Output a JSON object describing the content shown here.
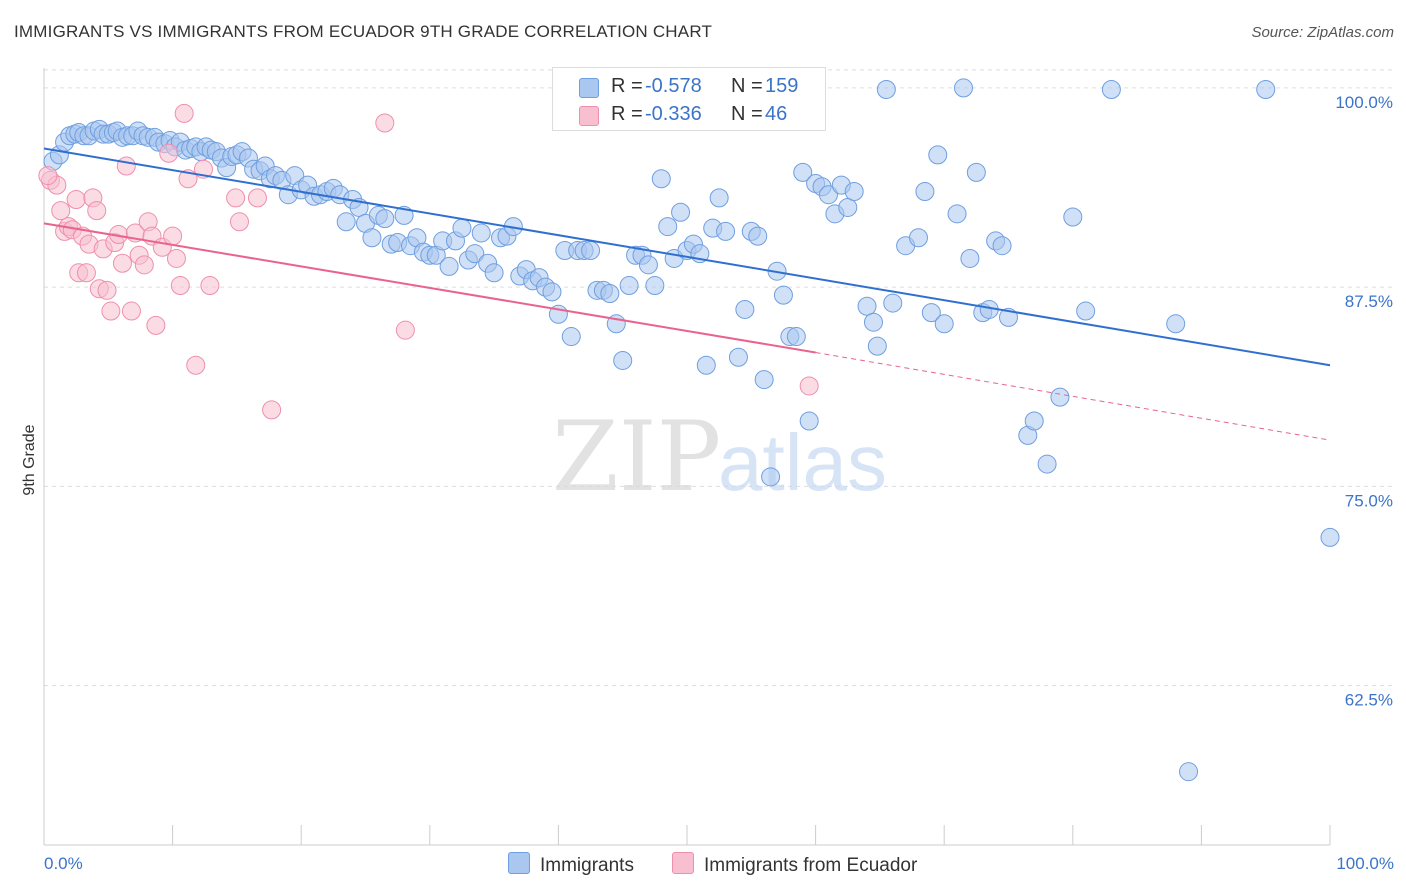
{
  "header": {
    "title": "IMMIGRANTS VS IMMIGRANTS FROM ECUADOR 9TH GRADE CORRELATION CHART",
    "source": "Source: ZipAtlas.com"
  },
  "watermark": {
    "zip": "ZIP",
    "atlas": "atlas"
  },
  "legend": {
    "series": [
      {
        "name": "Immigrants",
        "r_label": "R =",
        "r_value": "-0.578",
        "n_label": "N =",
        "n_value": "159",
        "color": "#a9c7ef",
        "stroke": "#6f9fe0"
      },
      {
        "name": "Immigrants from Ecuador",
        "r_label": "R =",
        "r_value": "-0.336",
        "n_label": "N =",
        "n_value": "46",
        "color": "#f7bfd0",
        "stroke": "#ee8fae"
      }
    ]
  },
  "chart_data": {
    "type": "scatter",
    "title": "IMMIGRANTS VS IMMIGRANTS FROM ECUADOR 9TH GRADE CORRELATION CHART",
    "xlabel": "",
    "ylabel": "9th Grade",
    "xlim": [
      0,
      100
    ],
    "ylim": [
      52.5,
      101.5
    ],
    "x_tick_labels": [
      "0.0%",
      "100.0%"
    ],
    "y_ticks": [
      62.5,
      75.0,
      87.5,
      100.0
    ],
    "y_tick_labels": [
      "62.5%",
      "75.0%",
      "87.5%",
      "100.0%"
    ],
    "grid": true,
    "legend_position": "top-center",
    "series": [
      {
        "name": "Immigrants",
        "color": "#6f9fe0",
        "trend": {
          "x": [
            0,
            100
          ],
          "y": [
            96.2,
            82.6
          ],
          "color": "#2f6fd0"
        },
        "points": [
          [
            0.7,
            95.4
          ],
          [
            1.2,
            95.8
          ],
          [
            1.6,
            96.6
          ],
          [
            2.0,
            97.0
          ],
          [
            2.4,
            97.1
          ],
          [
            2.7,
            97.2
          ],
          [
            3.1,
            97.0
          ],
          [
            3.5,
            97.0
          ],
          [
            3.9,
            97.3
          ],
          [
            4.3,
            97.4
          ],
          [
            4.6,
            97.1
          ],
          [
            5.0,
            97.1
          ],
          [
            5.4,
            97.2
          ],
          [
            5.7,
            97.3
          ],
          [
            6.1,
            96.9
          ],
          [
            6.5,
            97.0
          ],
          [
            6.9,
            97.0
          ],
          [
            7.3,
            97.3
          ],
          [
            7.7,
            97.0
          ],
          [
            8.1,
            96.9
          ],
          [
            8.6,
            96.9
          ],
          [
            8.9,
            96.6
          ],
          [
            9.4,
            96.5
          ],
          [
            9.8,
            96.7
          ],
          [
            10.2,
            96.3
          ],
          [
            10.6,
            96.6
          ],
          [
            11.0,
            96.1
          ],
          [
            11.4,
            96.2
          ],
          [
            11.8,
            96.3
          ],
          [
            12.2,
            96.0
          ],
          [
            12.6,
            96.3
          ],
          [
            13.0,
            96.1
          ],
          [
            13.4,
            96.0
          ],
          [
            13.8,
            95.6
          ],
          [
            14.2,
            95.0
          ],
          [
            14.6,
            95.7
          ],
          [
            15.0,
            95.8
          ],
          [
            15.4,
            96.0
          ],
          [
            15.9,
            95.6
          ],
          [
            16.3,
            94.9
          ],
          [
            16.8,
            94.8
          ],
          [
            17.2,
            95.1
          ],
          [
            17.6,
            94.3
          ],
          [
            18.0,
            94.5
          ],
          [
            18.5,
            94.2
          ],
          [
            19.0,
            93.3
          ],
          [
            19.5,
            94.5
          ],
          [
            20.0,
            93.6
          ],
          [
            20.5,
            93.9
          ],
          [
            21.0,
            93.2
          ],
          [
            21.5,
            93.3
          ],
          [
            22.0,
            93.5
          ],
          [
            22.5,
            93.7
          ],
          [
            23.0,
            93.3
          ],
          [
            23.5,
            91.6
          ],
          [
            24.0,
            93.0
          ],
          [
            24.5,
            92.5
          ],
          [
            25.0,
            91.5
          ],
          [
            25.5,
            90.6
          ],
          [
            26.0,
            92.0
          ],
          [
            26.5,
            91.8
          ],
          [
            27.0,
            90.2
          ],
          [
            27.5,
            90.3
          ],
          [
            28.0,
            92.0
          ],
          [
            28.5,
            90.1
          ],
          [
            29.0,
            90.6
          ],
          [
            29.5,
            89.7
          ],
          [
            30.0,
            89.5
          ],
          [
            30.5,
            89.5
          ],
          [
            31.0,
            90.4
          ],
          [
            31.5,
            88.8
          ],
          [
            32.0,
            90.4
          ],
          [
            32.5,
            91.2
          ],
          [
            33.0,
            89.2
          ],
          [
            33.5,
            89.6
          ],
          [
            34.0,
            90.9
          ],
          [
            34.5,
            89.0
          ],
          [
            35.0,
            88.4
          ],
          [
            35.5,
            90.6
          ],
          [
            36.0,
            90.7
          ],
          [
            36.5,
            91.3
          ],
          [
            37.0,
            88.2
          ],
          [
            37.5,
            88.6
          ],
          [
            38.0,
            87.9
          ],
          [
            38.5,
            88.1
          ],
          [
            39.0,
            87.5
          ],
          [
            39.5,
            87.2
          ],
          [
            40.0,
            85.8
          ],
          [
            40.5,
            89.8
          ],
          [
            41.0,
            84.4
          ],
          [
            41.5,
            89.8
          ],
          [
            42.0,
            89.8
          ],
          [
            42.5,
            89.8
          ],
          [
            43.0,
            87.3
          ],
          [
            43.5,
            87.3
          ],
          [
            44.0,
            87.1
          ],
          [
            44.5,
            85.2
          ],
          [
            45.0,
            82.9
          ],
          [
            45.5,
            87.6
          ],
          [
            46.0,
            89.5
          ],
          [
            46.5,
            89.5
          ],
          [
            47.0,
            88.9
          ],
          [
            47.5,
            87.6
          ],
          [
            48.0,
            94.3
          ],
          [
            48.5,
            91.3
          ],
          [
            49.0,
            89.3
          ],
          [
            49.5,
            92.2
          ],
          [
            50.0,
            89.8
          ],
          [
            50.5,
            90.2
          ],
          [
            51.0,
            89.6
          ],
          [
            51.5,
            82.6
          ],
          [
            52.0,
            91.2
          ],
          [
            52.5,
            93.1
          ],
          [
            53.0,
            91.0
          ],
          [
            54.0,
            83.1
          ],
          [
            54.5,
            86.1
          ],
          [
            55.0,
            91.0
          ],
          [
            55.5,
            90.7
          ],
          [
            56.0,
            81.7
          ],
          [
            57.0,
            88.5
          ],
          [
            57.5,
            87.0
          ],
          [
            58.0,
            84.4
          ],
          [
            58.5,
            84.4
          ],
          [
            59.0,
            94.7
          ],
          [
            59.5,
            79.1
          ],
          [
            60.0,
            94.0
          ],
          [
            60.5,
            93.8
          ],
          [
            61.0,
            93.3
          ],
          [
            61.5,
            92.1
          ],
          [
            62.0,
            93.9
          ],
          [
            62.5,
            92.5
          ],
          [
            63.0,
            93.5
          ],
          [
            64.0,
            86.3
          ],
          [
            64.5,
            85.3
          ],
          [
            64.8,
            83.8
          ],
          [
            65.5,
            99.9
          ],
          [
            66.0,
            86.5
          ],
          [
            67.0,
            90.1
          ],
          [
            68.0,
            90.6
          ],
          [
            68.5,
            93.5
          ],
          [
            69.0,
            85.9
          ],
          [
            69.5,
            95.8
          ],
          [
            70.0,
            85.2
          ],
          [
            71.0,
            92.1
          ],
          [
            71.5,
            100.0
          ],
          [
            72.0,
            89.3
          ],
          [
            72.5,
            94.7
          ],
          [
            73.0,
            85.9
          ],
          [
            73.5,
            86.1
          ],
          [
            74.0,
            90.4
          ],
          [
            74.5,
            90.1
          ],
          [
            75.0,
            85.6
          ],
          [
            76.5,
            78.2
          ],
          [
            77.0,
            79.1
          ],
          [
            78.0,
            76.4
          ],
          [
            79.0,
            80.6
          ],
          [
            80.0,
            91.9
          ],
          [
            81.0,
            86.0
          ],
          [
            83.0,
            99.9
          ],
          [
            88.0,
            85.2
          ],
          [
            89.0,
            57.1
          ],
          [
            95.0,
            99.9
          ],
          [
            100.0,
            71.8
          ],
          [
            56.5,
            75.6
          ]
        ]
      },
      {
        "name": "Immigrants from Ecuador",
        "color": "#ee8fae",
        "trend": {
          "x": [
            0,
            60
          ],
          "y": [
            91.5,
            83.4
          ],
          "color": "#e8648f",
          "dashed_to": [
            100,
            77.9
          ]
        },
        "points": [
          [
            0.5,
            94.2
          ],
          [
            1.0,
            93.9
          ],
          [
            1.3,
            92.3
          ],
          [
            1.6,
            91.0
          ],
          [
            1.9,
            91.3
          ],
          [
            2.2,
            91.1
          ],
          [
            2.5,
            93.0
          ],
          [
            2.7,
            88.4
          ],
          [
            3.0,
            90.7
          ],
          [
            3.3,
            88.4
          ],
          [
            3.5,
            90.2
          ],
          [
            3.8,
            93.1
          ],
          [
            4.1,
            92.3
          ],
          [
            4.3,
            87.4
          ],
          [
            4.6,
            89.9
          ],
          [
            4.9,
            87.3
          ],
          [
            5.2,
            86.0
          ],
          [
            5.5,
            90.3
          ],
          [
            5.8,
            90.8
          ],
          [
            6.1,
            89.0
          ],
          [
            6.4,
            95.1
          ],
          [
            6.8,
            86.0
          ],
          [
            7.1,
            90.9
          ],
          [
            7.4,
            89.5
          ],
          [
            7.8,
            88.9
          ],
          [
            8.1,
            91.6
          ],
          [
            8.4,
            90.7
          ],
          [
            8.7,
            85.1
          ],
          [
            9.2,
            90.0
          ],
          [
            9.7,
            95.9
          ],
          [
            10.0,
            90.7
          ],
          [
            10.3,
            89.3
          ],
          [
            10.6,
            87.6
          ],
          [
            10.9,
            98.4
          ],
          [
            11.2,
            94.3
          ],
          [
            11.8,
            82.6
          ],
          [
            12.4,
            94.9
          ],
          [
            12.9,
            87.6
          ],
          [
            14.9,
            93.1
          ],
          [
            15.2,
            91.6
          ],
          [
            16.6,
            93.1
          ],
          [
            17.7,
            79.8
          ],
          [
            26.5,
            97.8
          ],
          [
            28.1,
            84.8
          ],
          [
            59.5,
            81.3
          ],
          [
            0.3,
            94.5
          ]
        ]
      }
    ]
  }
}
